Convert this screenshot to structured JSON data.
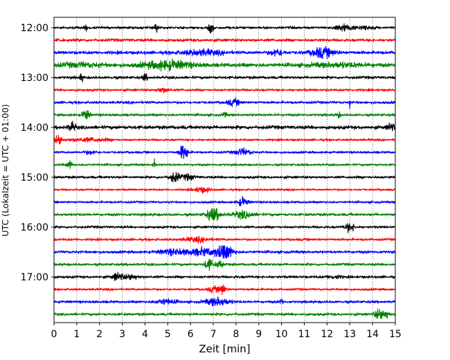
{
  "chart_data": {
    "type": "line",
    "xlabel": "Zeit  [min]",
    "ylabel": "UTC (Lokalzeit = UTC + 01:00)",
    "xlim": [
      0,
      15
    ],
    "x_ticks": [
      0,
      1,
      2,
      3,
      4,
      5,
      6,
      7,
      8,
      9,
      10,
      11,
      12,
      13,
      14,
      15
    ],
    "y_tick_labels": [
      "12:00",
      "13:00",
      "14:00",
      "15:00",
      "16:00",
      "17:00"
    ],
    "y_tick_trace_index": [
      0,
      4,
      8,
      12,
      16,
      20
    ],
    "grid": "vertical dotted",
    "trace_colors": [
      "#000000",
      "#ff0000",
      "#0000ff",
      "#008000"
    ],
    "trace_start_times": [
      "12:00",
      "12:15",
      "12:30",
      "12:45",
      "13:00",
      "13:15",
      "13:30",
      "13:45",
      "14:00",
      "14:15",
      "14:30",
      "14:45",
      "15:00",
      "15:15",
      "15:30",
      "15:45",
      "16:00",
      "16:15",
      "16:30",
      "16:45",
      "17:00",
      "17:15",
      "17:30",
      "17:45"
    ],
    "trace_minutes": 15,
    "base_noise": [
      1.5,
      1.8,
      2.0,
      2.4,
      1.7,
      1.5,
      1.6,
      1.6,
      2.2,
      1.4,
      1.4,
      1.4,
      1.6,
      1.3,
      1.4,
      1.7,
      1.5,
      1.5,
      1.7,
      1.6,
      1.6,
      1.4,
      1.6,
      1.6
    ],
    "events": [
      [
        [
          1.4,
          0.05,
          4
        ],
        [
          4.5,
          0.06,
          6
        ],
        [
          6.9,
          0.1,
          6
        ],
        [
          12.7,
          0.25,
          4
        ],
        [
          13.6,
          0.3,
          2
        ]
      ],
      [],
      [
        [
          6.5,
          0.6,
          3
        ],
        [
          9.8,
          0.2,
          4
        ],
        [
          11.8,
          0.35,
          6
        ]
      ],
      [
        [
          5.0,
          0.7,
          5
        ],
        [
          1.2,
          0.6,
          2
        ],
        [
          12.5,
          0.8,
          2
        ]
      ],
      [
        [
          1.2,
          0.05,
          5
        ],
        [
          4.0,
          0.06,
          5
        ]
      ],
      [
        [
          4.8,
          0.2,
          2.5
        ]
      ],
      [
        [
          7.9,
          0.2,
          3.5
        ],
        [
          13.0,
          0.02,
          6
        ]
      ],
      [
        [
          1.4,
          0.1,
          7
        ],
        [
          7.5,
          0.05,
          4
        ],
        [
          12.5,
          0.05,
          4
        ]
      ],
      [
        [
          0.8,
          0.1,
          6
        ],
        [
          14.8,
          0.1,
          5
        ]
      ],
      [
        [
          0.2,
          0.1,
          6
        ],
        [
          1.5,
          0.6,
          2
        ]
      ],
      [
        [
          5.7,
          0.12,
          12
        ],
        [
          8.3,
          0.25,
          4
        ],
        [
          1.6,
          0.2,
          2
        ]
      ],
      [
        [
          0.7,
          0.08,
          5
        ],
        [
          4.4,
          0.03,
          11
        ]
      ],
      [
        [
          5.3,
          0.15,
          6
        ],
        [
          5.9,
          0.2,
          3
        ]
      ],
      [
        [
          6.5,
          0.25,
          3
        ]
      ],
      [
        [
          8.3,
          0.15,
          5
        ]
      ],
      [
        [
          7.0,
          0.2,
          8
        ],
        [
          8.3,
          0.3,
          4
        ]
      ],
      [
        [
          13.0,
          0.15,
          5
        ]
      ],
      [
        [
          6.3,
          0.4,
          2.5
        ]
      ],
      [
        [
          7.5,
          0.25,
          10
        ],
        [
          6.5,
          0.5,
          4
        ],
        [
          5.2,
          0.4,
          3
        ]
      ],
      [
        [
          6.8,
          0.12,
          7
        ],
        [
          7.3,
          0.12,
          4
        ]
      ],
      [
        [
          2.8,
          0.15,
          5
        ],
        [
          3.4,
          0.2,
          3
        ],
        [
          12.3,
          0.2,
          2
        ]
      ],
      [
        [
          7.4,
          0.1,
          7
        ],
        [
          7.0,
          0.15,
          3
        ]
      ],
      [
        [
          7.2,
          0.35,
          5
        ],
        [
          4.9,
          0.3,
          3
        ],
        [
          10.0,
          0.05,
          4
        ]
      ],
      [
        [
          14.3,
          0.15,
          6
        ],
        [
          14.6,
          0.1,
          4
        ]
      ]
    ]
  }
}
